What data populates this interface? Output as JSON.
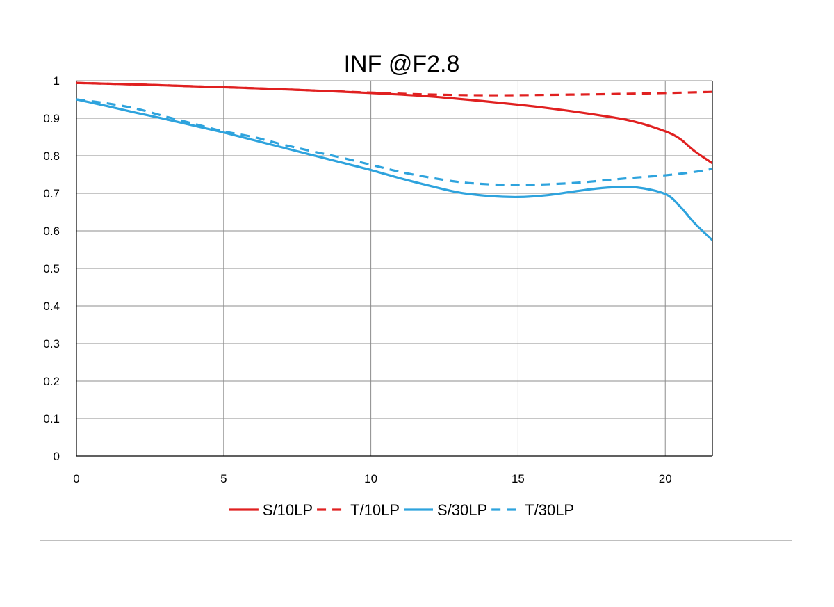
{
  "chart_data": {
    "type": "line",
    "title": "INF @F2.8",
    "xlabel": "",
    "ylabel": "",
    "xlim": [
      0,
      21.6
    ],
    "ylim": [
      0,
      1
    ],
    "x_ticks": [
      "0",
      "5",
      "10",
      "15",
      "20"
    ],
    "y_ticks": [
      "0",
      "0.1",
      "0.2",
      "0.3",
      "0.4",
      "0.5",
      "0.6",
      "0.7",
      "0.8",
      "0.9",
      "1"
    ],
    "grid": true,
    "legend_position": "bottom",
    "series": [
      {
        "name": "S/10LP",
        "color": "#e02020",
        "style": "solid",
        "points": [
          [
            0,
            0.994
          ],
          [
            2,
            0.99
          ],
          [
            4,
            0.985
          ],
          [
            6,
            0.98
          ],
          [
            8,
            0.974
          ],
          [
            10,
            0.967
          ],
          [
            12,
            0.958
          ],
          [
            14,
            0.944
          ],
          [
            16,
            0.927
          ],
          [
            18,
            0.905
          ],
          [
            19,
            0.89
          ],
          [
            20,
            0.865
          ],
          [
            20.5,
            0.845
          ],
          [
            21,
            0.812
          ],
          [
            21.6,
            0.78
          ]
        ]
      },
      {
        "name": "T/10LP",
        "color": "#e02020",
        "style": "dashed",
        "points": [
          [
            0,
            0.994
          ],
          [
            2,
            0.99
          ],
          [
            4,
            0.985
          ],
          [
            6,
            0.98
          ],
          [
            8,
            0.974
          ],
          [
            10,
            0.968
          ],
          [
            12,
            0.963
          ],
          [
            14,
            0.961
          ],
          [
            16,
            0.962
          ],
          [
            18,
            0.964
          ],
          [
            20,
            0.967
          ],
          [
            21.6,
            0.97
          ]
        ]
      },
      {
        "name": "S/30LP",
        "color": "#2ea3dd",
        "style": "solid",
        "points": [
          [
            0,
            0.95
          ],
          [
            1,
            0.933
          ],
          [
            2,
            0.915
          ],
          [
            3,
            0.898
          ],
          [
            4,
            0.88
          ],
          [
            5,
            0.862
          ],
          [
            6,
            0.842
          ],
          [
            7,
            0.822
          ],
          [
            8,
            0.802
          ],
          [
            9,
            0.782
          ],
          [
            10,
            0.762
          ],
          [
            11,
            0.74
          ],
          [
            12,
            0.72
          ],
          [
            13,
            0.702
          ],
          [
            14,
            0.693
          ],
          [
            15,
            0.69
          ],
          [
            16,
            0.695
          ],
          [
            17,
            0.706
          ],
          [
            18,
            0.715
          ],
          [
            19,
            0.716
          ],
          [
            20,
            0.698
          ],
          [
            20.5,
            0.665
          ],
          [
            21,
            0.62
          ],
          [
            21.6,
            0.575
          ]
        ]
      },
      {
        "name": "T/30LP",
        "color": "#2ea3dd",
        "style": "dashed",
        "points": [
          [
            0,
            0.95
          ],
          [
            1,
            0.94
          ],
          [
            2,
            0.926
          ],
          [
            3,
            0.905
          ],
          [
            4,
            0.885
          ],
          [
            5,
            0.865
          ],
          [
            6,
            0.85
          ],
          [
            7,
            0.83
          ],
          [
            8,
            0.812
          ],
          [
            9,
            0.795
          ],
          [
            10,
            0.776
          ],
          [
            11,
            0.757
          ],
          [
            12,
            0.742
          ],
          [
            13,
            0.73
          ],
          [
            14,
            0.724
          ],
          [
            15,
            0.722
          ],
          [
            16,
            0.724
          ],
          [
            17,
            0.728
          ],
          [
            18,
            0.735
          ],
          [
            19,
            0.742
          ],
          [
            20,
            0.748
          ],
          [
            21,
            0.757
          ],
          [
            21.6,
            0.765
          ]
        ]
      }
    ]
  }
}
